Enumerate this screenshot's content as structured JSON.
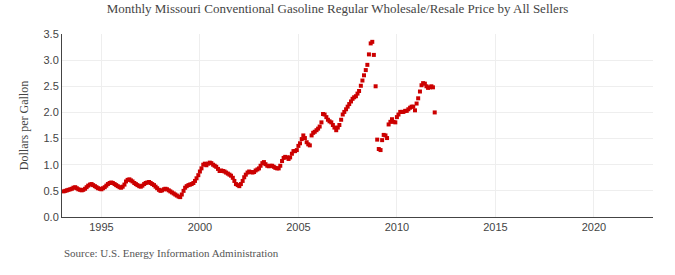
{
  "chart_data": {
    "type": "scatter",
    "title": "Monthly Missouri Conventional Gasoline Regular Wholesale/Resale Price by All Sellers",
    "y_label": "Dollars per Gallon",
    "annotations": [
      "Source: U.S. Energy Information Administration"
    ],
    "color": "#cc0000",
    "marker": "square",
    "grid": true,
    "xlim": [
      1993.0,
      2023.0
    ],
    "ylim": [
      0.0,
      3.5
    ],
    "xticks": [
      1995,
      2000,
      2005,
      2010,
      2015,
      2020
    ],
    "yticks": [
      {
        "value": 0.0,
        "label": "0.0"
      },
      0.5,
      {
        "value": 1.0,
        "label": "1.0"
      },
      1.5,
      {
        "value": 2.0,
        "label": "2.0"
      },
      2.5,
      {
        "value": 3.0,
        "label": "3.0"
      },
      3.5
    ],
    "x": [
      1993.08,
      1993.17,
      1993.25,
      1993.33,
      1993.42,
      1993.5,
      1993.58,
      1993.67,
      1993.75,
      1993.83,
      1993.92,
      1994.0,
      1994.08,
      1994.17,
      1994.25,
      1994.33,
      1994.42,
      1994.5,
      1994.58,
      1994.67,
      1994.75,
      1994.83,
      1994.92,
      1995.0,
      1995.08,
      1995.17,
      1995.25,
      1995.33,
      1995.42,
      1995.5,
      1995.58,
      1995.67,
      1995.75,
      1995.83,
      1995.92,
      1996.0,
      1996.08,
      1996.17,
      1996.25,
      1996.33,
      1996.42,
      1996.5,
      1996.58,
      1996.67,
      1996.75,
      1996.83,
      1996.92,
      1997.0,
      1997.08,
      1997.17,
      1997.25,
      1997.33,
      1997.42,
      1997.5,
      1997.58,
      1997.67,
      1997.75,
      1997.83,
      1997.92,
      1998.0,
      1998.08,
      1998.17,
      1998.25,
      1998.33,
      1998.42,
      1998.5,
      1998.58,
      1998.67,
      1998.75,
      1998.83,
      1998.92,
      1999.0,
      1999.08,
      1999.17,
      1999.25,
      1999.33,
      1999.42,
      1999.5,
      1999.58,
      1999.67,
      1999.75,
      1999.83,
      1999.92,
      2000.0,
      2000.08,
      2000.17,
      2000.25,
      2000.33,
      2000.42,
      2000.5,
      2000.58,
      2000.67,
      2000.75,
      2000.83,
      2000.92,
      2001.0,
      2001.08,
      2001.17,
      2001.25,
      2001.33,
      2001.42,
      2001.5,
      2001.58,
      2001.67,
      2001.75,
      2001.83,
      2001.92,
      2002.0,
      2002.08,
      2002.17,
      2002.25,
      2002.33,
      2002.42,
      2002.5,
      2002.58,
      2002.67,
      2002.75,
      2002.83,
      2002.92,
      2003.0,
      2003.08,
      2003.17,
      2003.25,
      2003.33,
      2003.42,
      2003.5,
      2003.58,
      2003.67,
      2003.75,
      2003.83,
      2003.92,
      2004.0,
      2004.08,
      2004.17,
      2004.25,
      2004.33,
      2004.42,
      2004.5,
      2004.58,
      2004.67,
      2004.75,
      2004.83,
      2004.92,
      2005.0,
      2005.08,
      2005.17,
      2005.25,
      2005.33,
      2005.42,
      2005.5,
      2005.58,
      2005.67,
      2005.75,
      2005.83,
      2005.92,
      2006.0,
      2006.08,
      2006.17,
      2006.25,
      2006.33,
      2006.42,
      2006.5,
      2006.58,
      2006.67,
      2006.75,
      2006.83,
      2006.92,
      2007.0,
      2007.08,
      2007.17,
      2007.25,
      2007.33,
      2007.42,
      2007.5,
      2007.58,
      2007.67,
      2007.75,
      2007.83,
      2007.92,
      2008.0,
      2008.08,
      2008.17,
      2008.25,
      2008.33,
      2008.42,
      2008.5,
      2008.58,
      2008.67,
      2008.75,
      2008.83,
      2008.92,
      2009.0,
      2009.08,
      2009.17,
      2009.25,
      2009.33,
      2009.42,
      2009.5,
      2009.58,
      2009.67,
      2009.75,
      2009.83,
      2009.92,
      2010.0,
      2010.08,
      2010.17,
      2010.25,
      2010.33,
      2010.42,
      2010.5,
      2010.58,
      2010.67,
      2010.75,
      2010.83,
      2010.92,
      2011.0,
      2011.08,
      2011.17,
      2011.25,
      2011.33,
      2011.42,
      2011.5,
      2011.58,
      2011.67,
      2011.75,
      2011.83,
      2011.92
    ],
    "values": [
      0.49,
      0.5,
      0.51,
      0.52,
      0.53,
      0.54,
      0.56,
      0.57,
      0.55,
      0.53,
      0.52,
      0.51,
      0.52,
      0.54,
      0.57,
      0.6,
      0.62,
      0.63,
      0.61,
      0.59,
      0.57,
      0.55,
      0.54,
      0.53,
      0.55,
      0.57,
      0.6,
      0.63,
      0.65,
      0.66,
      0.65,
      0.63,
      0.61,
      0.59,
      0.57,
      0.56,
      0.58,
      0.62,
      0.68,
      0.71,
      0.72,
      0.7,
      0.68,
      0.65,
      0.63,
      0.61,
      0.59,
      0.58,
      0.6,
      0.63,
      0.65,
      0.66,
      0.67,
      0.65,
      0.63,
      0.61,
      0.58,
      0.55,
      0.52,
      0.5,
      0.51,
      0.53,
      0.54,
      0.53,
      0.51,
      0.49,
      0.47,
      0.45,
      0.43,
      0.41,
      0.39,
      0.38,
      0.43,
      0.5,
      0.56,
      0.59,
      0.61,
      0.62,
      0.63,
      0.65,
      0.69,
      0.74,
      0.8,
      0.87,
      0.93,
      1.0,
      1.02,
      0.99,
      1.02,
      1.04,
      1.03,
      1.0,
      0.98,
      0.96,
      0.92,
      0.88,
      0.89,
      0.88,
      0.87,
      0.85,
      0.83,
      0.81,
      0.79,
      0.75,
      0.69,
      0.63,
      0.61,
      0.59,
      0.63,
      0.69,
      0.76,
      0.81,
      0.85,
      0.87,
      0.86,
      0.85,
      0.86,
      0.89,
      0.91,
      0.93,
      0.98,
      1.03,
      1.05,
      1.01,
      0.98,
      0.97,
      0.98,
      0.98,
      0.96,
      0.94,
      0.93,
      0.93,
      0.98,
      1.07,
      1.13,
      1.15,
      1.14,
      1.11,
      1.14,
      1.21,
      1.26,
      1.26,
      1.28,
      1.36,
      1.41,
      1.49,
      1.56,
      1.51,
      1.43,
      1.39,
      1.37,
      1.56,
      1.61,
      1.63,
      1.66,
      1.69,
      1.73,
      1.81,
      1.97,
      1.96,
      1.91,
      1.86,
      1.83,
      1.81,
      1.76,
      1.71,
      1.66,
      1.71,
      1.76,
      1.86,
      1.96,
      2.01,
      2.06,
      2.11,
      2.16,
      2.21,
      2.26,
      2.29,
      2.31,
      2.36,
      2.41,
      2.51,
      2.61,
      2.71,
      2.81,
      2.91,
      3.11,
      3.32,
      3.35,
      3.1,
      2.5,
      1.48,
      1.3,
      1.28,
      1.47,
      1.57,
      1.56,
      1.51,
      1.77,
      1.82,
      1.87,
      1.82,
      1.81,
      1.91,
      1.96,
      2.01,
      2.01,
      2.01,
      2.03,
      2.03,
      2.06,
      2.09,
      2.11,
      2.11,
      2.04,
      2.17,
      2.27,
      2.4,
      2.52,
      2.56,
      2.55,
      2.5,
      2.47,
      2.48,
      2.5,
      2.48,
      2.0
    ]
  }
}
